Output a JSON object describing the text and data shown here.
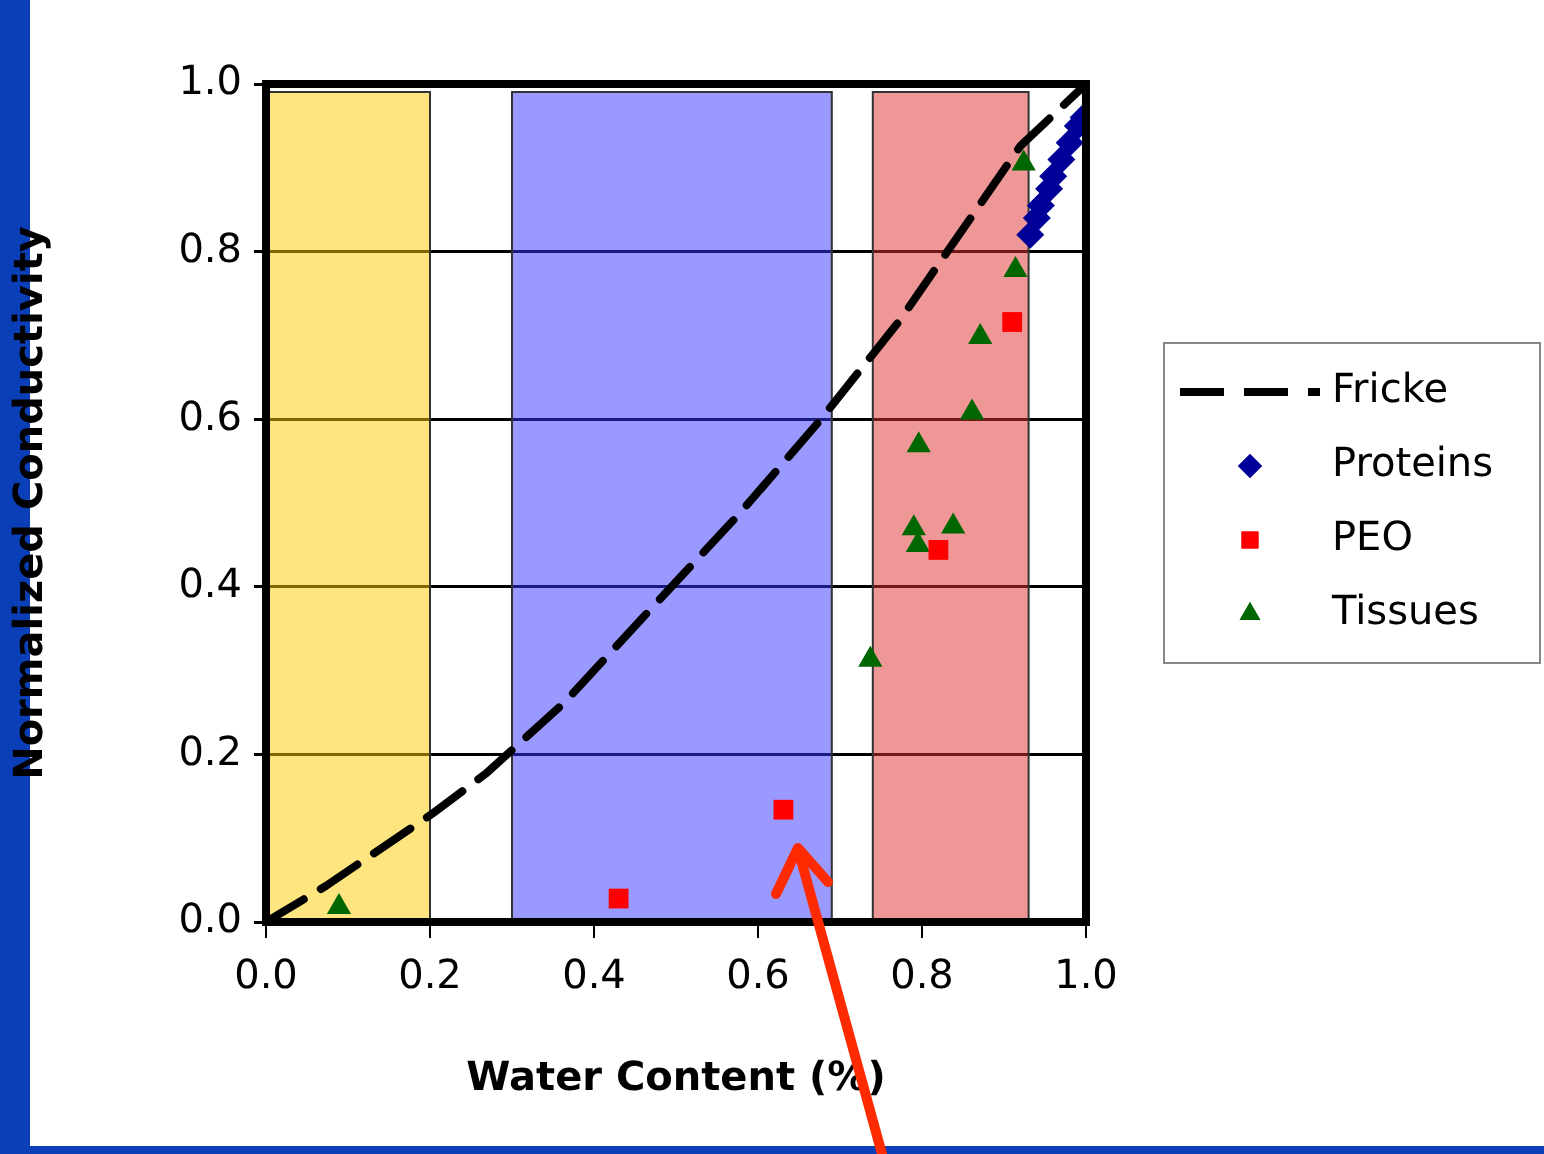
{
  "chart_data": {
    "type": "scatter",
    "xlabel": "Water Content (%)",
    "ylabel": "Normalized Conductivity",
    "xlim": [
      0,
      1
    ],
    "ylim": [
      0,
      1
    ],
    "xticks": [
      {
        "value": 0,
        "label": "0.0"
      },
      0.2,
      0.4,
      0.6,
      0.8,
      {
        "value": 1,
        "label": "1.0"
      }
    ],
    "yticks": [
      {
        "value": 0,
        "label": "0.0"
      },
      0.2,
      0.4,
      0.6,
      0.8,
      {
        "value": 1,
        "label": "1.0"
      }
    ],
    "grid": "y",
    "legend": "right",
    "bands": [
      {
        "axis": "x",
        "from": 0,
        "to": 0.2,
        "color": "#ffcc00"
      },
      {
        "axis": "x",
        "from": 0.3,
        "to": 0.69,
        "color": "#3333ff"
      },
      {
        "axis": "x",
        "from": 0.74,
        "to": 0.93,
        "color": "#e03030"
      }
    ],
    "series": [
      {
        "name": "Fricke",
        "type": "line",
        "color": "#000000",
        "line_style": "dashed",
        "marker": "none",
        "x": [
          0,
          0.073,
          0.204,
          0.268,
          0.363,
          0.464,
          0.578,
          0.676,
          0.773,
          0.92,
          1
        ],
        "values": [
          0,
          0.043,
          0.13,
          0.177,
          0.261,
          0.368,
          0.488,
          0.599,
          0.718,
          0.926,
          1
        ]
      },
      {
        "name": "Proteins",
        "type": "scatter",
        "color": "#000099",
        "marker": "diamond",
        "x": [
          0.932,
          0.94,
          0.945,
          0.955,
          0.96,
          0.97,
          0.98,
          0.99,
          0.997
        ],
        "values": [
          0.82,
          0.84,
          0.855,
          0.875,
          0.89,
          0.91,
          0.93,
          0.95,
          0.96
        ]
      },
      {
        "name": "PEO",
        "type": "scatter",
        "color": "#ff0000",
        "marker": "square",
        "x": [
          0.43,
          0.631,
          0.82,
          0.91
        ],
        "values": [
          0.028,
          0.134,
          0.444,
          0.716
        ]
      },
      {
        "name": "Tissues",
        "type": "scatter",
        "color": "#006600",
        "marker": "triangle",
        "x": [
          0.089,
          0.737,
          0.79,
          0.795,
          0.838,
          0.796,
          0.861,
          0.871,
          0.914,
          0.924
        ],
        "values": [
          0.018,
          0.313,
          0.47,
          0.45,
          0.472,
          0.569,
          0.608,
          0.698,
          0.778,
          0.905
        ]
      }
    ]
  }
}
